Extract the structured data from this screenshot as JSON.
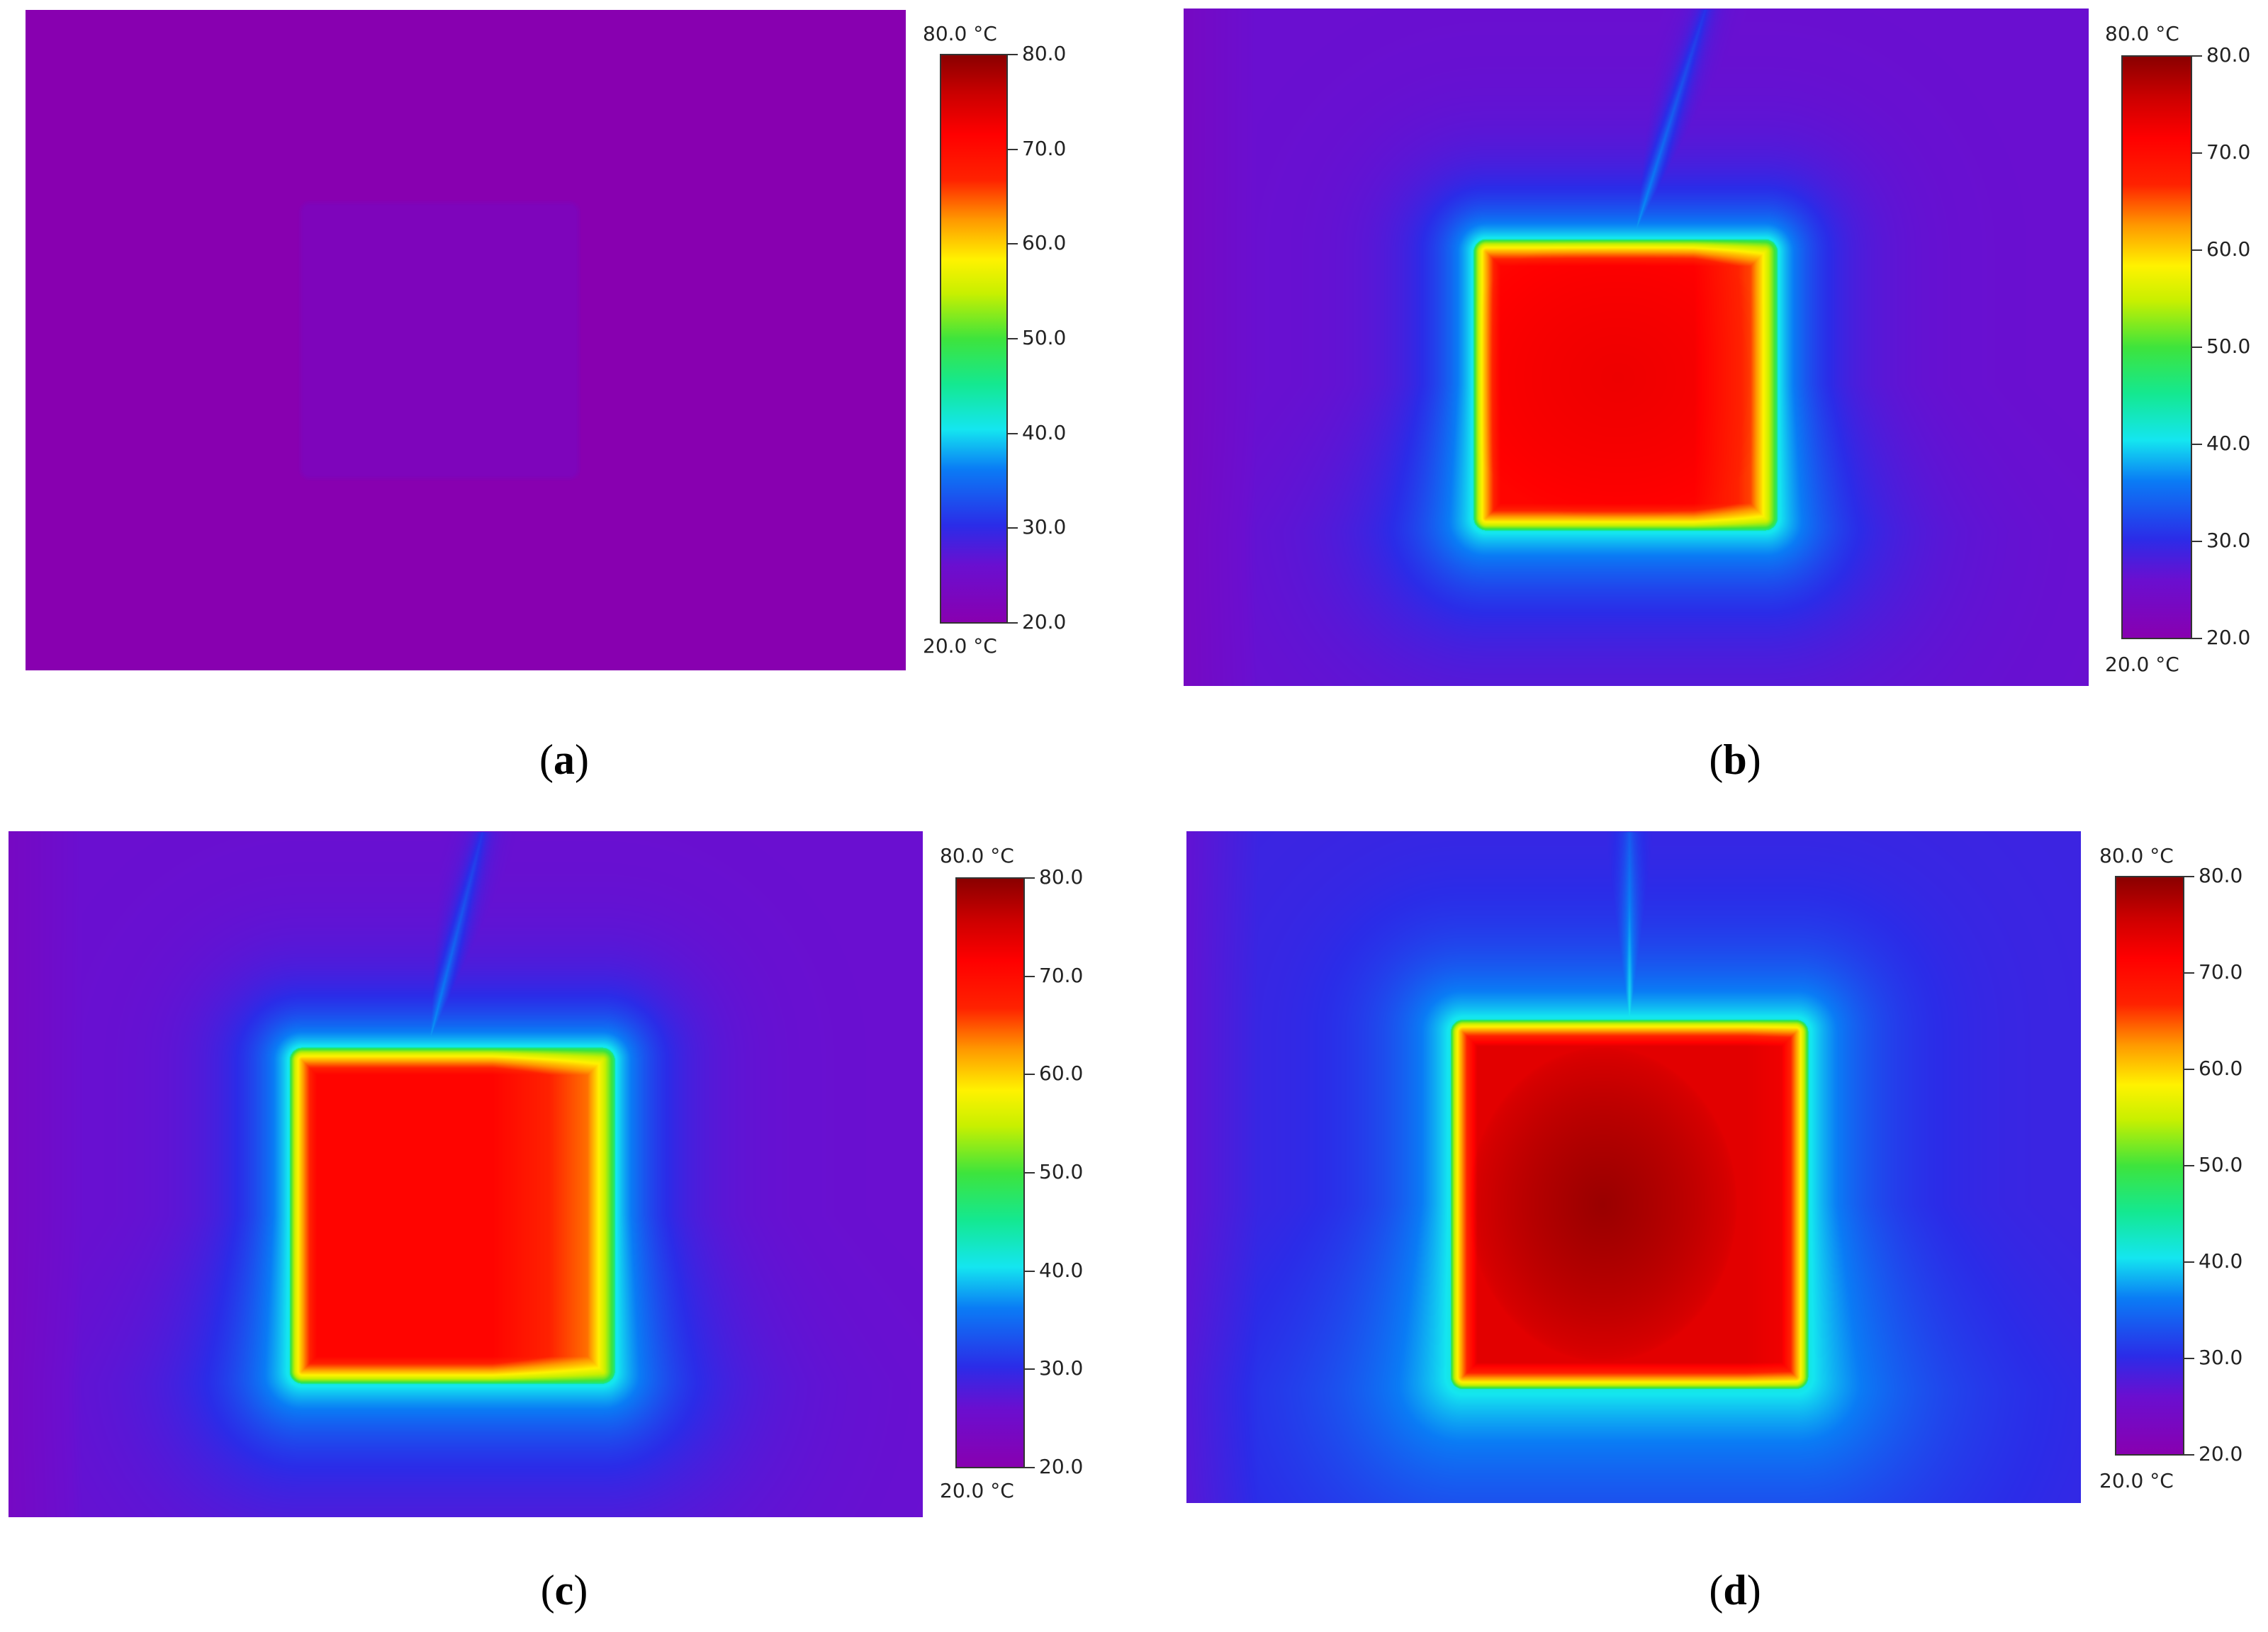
{
  "colormap": {
    "stops": [
      {
        "t": 0.0,
        "c": "#8800b0"
      },
      {
        "t": 0.1,
        "c": "#6a0fd0"
      },
      {
        "t": 0.17,
        "c": "#2b2ce8"
      },
      {
        "t": 0.27,
        "c": "#0a7cf5"
      },
      {
        "t": 0.34,
        "c": "#14e6f0"
      },
      {
        "t": 0.42,
        "c": "#14e890"
      },
      {
        "t": 0.5,
        "c": "#3ee43c"
      },
      {
        "t": 0.58,
        "c": "#c8f000"
      },
      {
        "t": 0.64,
        "c": "#fff200"
      },
      {
        "t": 0.71,
        "c": "#ff9800"
      },
      {
        "t": 0.78,
        "c": "#ff2200"
      },
      {
        "t": 0.86,
        "c": "#ff0000"
      },
      {
        "t": 0.93,
        "c": "#cc0000"
      },
      {
        "t": 1.0,
        "c": "#8a0000"
      }
    ],
    "min": 20.0,
    "max": 80.0
  },
  "panels": [
    {
      "id": "a",
      "caption": "a",
      "colorbar_top_label": "80.0 °C",
      "colorbar_bottom_label": "20.0 °C",
      "colorbar_ticks": [
        "80.0",
        "70.0",
        "60.0",
        "50.0",
        "40.0",
        "30.0",
        "20.0"
      ],
      "scene": {
        "background_temp": 20.0,
        "object_temp": 22.0,
        "halo": 0
      }
    },
    {
      "id": "b",
      "caption": "b",
      "colorbar_top_label": "80.0 °C",
      "colorbar_bottom_label": "20.0 °C",
      "colorbar_ticks": [
        "80.0",
        "70.0",
        "60.0",
        "50.0",
        "40.0",
        "30.0",
        "20.0"
      ],
      "scene": {
        "background_temp": 26.0,
        "object_temp": 71.0,
        "hot_temp": 73.0,
        "warm_side_temp": 63.0,
        "halo": 1
      }
    },
    {
      "id": "c",
      "caption": "c",
      "colorbar_top_label": "80.0 °C",
      "colorbar_bottom_label": "20.0 °C",
      "colorbar_ticks": [
        "80.0",
        "70.0",
        "60.0",
        "50.0",
        "40.0",
        "30.0",
        "20.0"
      ],
      "scene": {
        "background_temp": 26.0,
        "object_temp": 71.0,
        "hot_temp": 71.0,
        "warm_side_temp": 62.0,
        "halo": 1
      }
    },
    {
      "id": "d",
      "caption": "d",
      "colorbar_top_label": "80.0 °C",
      "colorbar_bottom_label": "20.0 °C",
      "colorbar_ticks": [
        "80.0",
        "70.0",
        "60.0",
        "50.0",
        "40.0",
        "30.0",
        "20.0"
      ],
      "scene": {
        "background_temp": 29.0,
        "object_temp": 74.0,
        "hot_temp": 79.0,
        "warm_side_temp": 72.0,
        "halo": 1.4
      }
    }
  ]
}
